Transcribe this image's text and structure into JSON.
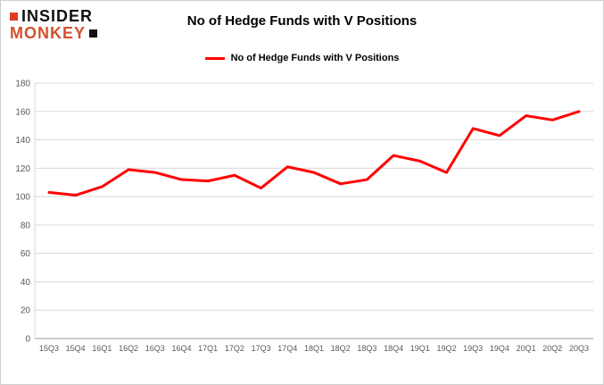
{
  "logo": {
    "line1": "INSIDER",
    "line2": "MONKEY",
    "block_red": "#e03c22",
    "block_black": "#111111",
    "monkey_color": "#d4502e"
  },
  "header": {
    "title": "No of Hedge Funds with V Positions"
  },
  "legend": {
    "label": "No of Hedge Funds with V Positions",
    "color": "#ff0000"
  },
  "chart_data": {
    "type": "line",
    "title": "No of Hedge Funds with V Positions",
    "categories": [
      "15Q3",
      "15Q4",
      "16Q1",
      "16Q2",
      "16Q3",
      "16Q4",
      "17Q1",
      "17Q2",
      "17Q3",
      "17Q4",
      "18Q1",
      "18Q2",
      "18Q3",
      "18Q4",
      "19Q1",
      "19Q2",
      "19Q3",
      "19Q4",
      "20Q1",
      "20Q2",
      "20Q3"
    ],
    "series": [
      {
        "name": "No of Hedge Funds with V Positions",
        "color": "#ff0000",
        "values": [
          103,
          101,
          107,
          119,
          117,
          112,
          111,
          115,
          106,
          121,
          117,
          109,
          112,
          129,
          125,
          117,
          148,
          143,
          157,
          154,
          160
        ]
      }
    ],
    "xlabel": "",
    "ylabel": "",
    "ylim": [
      0,
      180
    ],
    "ytick_step": 20,
    "grid": true,
    "legend_position": "top-center",
    "line_width": 3
  }
}
